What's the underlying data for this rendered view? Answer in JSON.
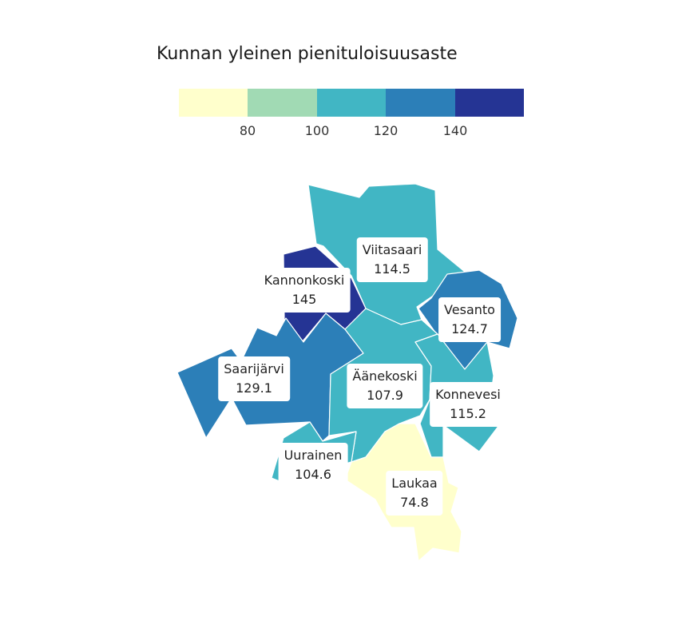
{
  "legend": {
    "title": "Kunnan yleinen pienituloisuusaste",
    "colors": [
      "#ffffcc",
      "#a1dab4",
      "#41b6c4",
      "#2c7fb8",
      "#253494"
    ],
    "ticks": [
      "80",
      "100",
      "120",
      "140"
    ]
  },
  "municipalities": [
    {
      "name": "Viitasaari",
      "value": "114.5",
      "color": "#41b6c4"
    },
    {
      "name": "Kannonkoski",
      "value": "145",
      "color": "#253494"
    },
    {
      "name": "Vesanto",
      "value": "124.7",
      "color": "#2c7fb8"
    },
    {
      "name": "Saarijärvi",
      "value": "129.1",
      "color": "#2c7fb8"
    },
    {
      "name": "Äänekoski",
      "value": "107.9",
      "color": "#41b6c4"
    },
    {
      "name": "Konnevesi",
      "value": "115.2",
      "color": "#41b6c4"
    },
    {
      "name": "Uurainen",
      "value": "104.6",
      "color": "#41b6c4"
    },
    {
      "name": "Laukaa",
      "value": "74.8",
      "color": "#ffffcc"
    }
  ]
}
